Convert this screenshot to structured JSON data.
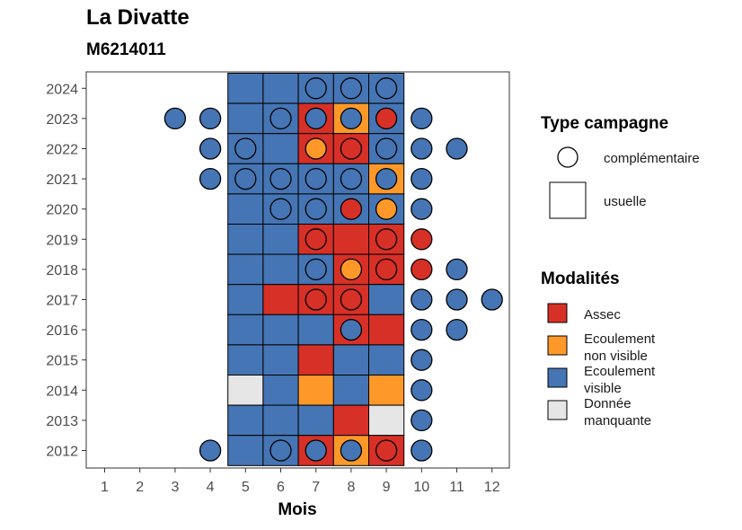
{
  "header": {
    "title": "La Divatte",
    "subtitle": "M6214011"
  },
  "colors": {
    "Assec": "#d73027",
    "Ecoulement non visible": "#fe9929",
    "Ecoulement visible": "#4575b4",
    "Donnée manquante": "#e6e6e6"
  },
  "legend": {
    "type_title": "Type campagne",
    "type_items": [
      "complémentaire",
      "usuelle"
    ],
    "mod_title": "Modalités",
    "mod_items": [
      {
        "key": "Assec",
        "lines": [
          "Assec"
        ]
      },
      {
        "key": "Ecoulement non visible",
        "lines": [
          "Ecoulement",
          "non visible"
        ]
      },
      {
        "key": "Ecoulement visible",
        "lines": [
          "Ecoulement",
          "visible"
        ]
      },
      {
        "key": "Donnée manquante",
        "lines": [
          "Donnée",
          "manquante"
        ]
      }
    ]
  },
  "chart_data": {
    "type": "heatmap",
    "xlabel": "Mois",
    "ylabel": "",
    "x_ticks": [
      1,
      2,
      3,
      4,
      5,
      6,
      7,
      8,
      9,
      10,
      11,
      12
    ],
    "y_ticks": [
      2012,
      2013,
      2014,
      2015,
      2016,
      2017,
      2018,
      2019,
      2020,
      2021,
      2022,
      2023,
      2024
    ],
    "usuelle": [
      {
        "year": 2024,
        "values": {
          "5": "Ecoulement visible",
          "6": "Ecoulement visible",
          "7": "Ecoulement visible",
          "8": "Ecoulement visible",
          "9": "Ecoulement visible"
        }
      },
      {
        "year": 2023,
        "values": {
          "5": "Ecoulement visible",
          "6": "Ecoulement visible",
          "7": "Assec",
          "8": "Ecoulement non visible",
          "9": "Ecoulement visible"
        }
      },
      {
        "year": 2022,
        "values": {
          "5": "Ecoulement visible",
          "6": "Ecoulement visible",
          "7": "Assec",
          "8": "Assec",
          "9": "Ecoulement visible"
        }
      },
      {
        "year": 2021,
        "values": {
          "5": "Ecoulement visible",
          "6": "Ecoulement visible",
          "7": "Ecoulement visible",
          "8": "Ecoulement visible",
          "9": "Ecoulement non visible"
        }
      },
      {
        "year": 2020,
        "values": {
          "5": "Ecoulement visible",
          "6": "Ecoulement visible",
          "7": "Ecoulement visible",
          "8": "Ecoulement visible",
          "9": "Ecoulement visible"
        }
      },
      {
        "year": 2019,
        "values": {
          "5": "Ecoulement visible",
          "6": "Ecoulement visible",
          "7": "Assec",
          "8": "Assec",
          "9": "Assec"
        }
      },
      {
        "year": 2018,
        "values": {
          "5": "Ecoulement visible",
          "6": "Ecoulement visible",
          "7": "Ecoulement visible",
          "8": "Assec",
          "9": "Assec"
        }
      },
      {
        "year": 2017,
        "values": {
          "5": "Ecoulement visible",
          "6": "Assec",
          "7": "Assec",
          "8": "Assec",
          "9": "Ecoulement visible"
        }
      },
      {
        "year": 2016,
        "values": {
          "5": "Ecoulement visible",
          "6": "Ecoulement visible",
          "7": "Ecoulement visible",
          "8": "Assec",
          "9": "Assec"
        }
      },
      {
        "year": 2015,
        "values": {
          "5": "Ecoulement visible",
          "6": "Ecoulement visible",
          "7": "Assec",
          "8": "Ecoulement visible",
          "9": "Ecoulement visible"
        }
      },
      {
        "year": 2014,
        "values": {
          "5": "Donnée manquante",
          "6": "Ecoulement visible",
          "7": "Ecoulement non visible",
          "8": "Ecoulement visible",
          "9": "Ecoulement non visible"
        }
      },
      {
        "year": 2013,
        "values": {
          "5": "Ecoulement visible",
          "6": "Ecoulement visible",
          "7": "Ecoulement visible",
          "8": "Assec",
          "9": "Donnée manquante"
        }
      },
      {
        "year": 2012,
        "values": {
          "5": "Ecoulement visible",
          "6": "Ecoulement visible",
          "7": "Assec",
          "8": "Ecoulement non visible",
          "9": "Assec"
        }
      }
    ],
    "complementaire": [
      {
        "year": 2024,
        "values": {
          "7": "Ecoulement visible",
          "8": "Ecoulement visible",
          "9": "Ecoulement visible"
        }
      },
      {
        "year": 2023,
        "values": {
          "3": "Ecoulement visible",
          "4": "Ecoulement visible",
          "6": "Ecoulement visible",
          "7": "Ecoulement visible",
          "8": "Ecoulement visible",
          "9": "Assec",
          "10": "Ecoulement visible"
        }
      },
      {
        "year": 2022,
        "values": {
          "4": "Ecoulement visible",
          "5": "Ecoulement visible",
          "7": "Ecoulement non visible",
          "8": "Assec",
          "9": "Ecoulement visible",
          "10": "Ecoulement visible",
          "11": "Ecoulement visible"
        }
      },
      {
        "year": 2021,
        "values": {
          "4": "Ecoulement visible",
          "5": "Ecoulement visible",
          "6": "Ecoulement visible",
          "7": "Ecoulement visible",
          "8": "Ecoulement visible",
          "9": "Ecoulement visible",
          "10": "Ecoulement visible"
        }
      },
      {
        "year": 2020,
        "values": {
          "6": "Ecoulement visible",
          "7": "Ecoulement visible",
          "8": "Assec",
          "9": "Ecoulement non visible",
          "10": "Ecoulement visible"
        }
      },
      {
        "year": 2019,
        "values": {
          "7": "Assec",
          "9": "Assec",
          "10": "Assec"
        }
      },
      {
        "year": 2018,
        "values": {
          "7": "Ecoulement visible",
          "8": "Ecoulement non visible",
          "9": "Assec",
          "10": "Assec",
          "11": "Ecoulement visible"
        }
      },
      {
        "year": 2017,
        "values": {
          "7": "Assec",
          "8": "Assec",
          "10": "Ecoulement visible",
          "11": "Ecoulement visible",
          "12": "Ecoulement visible"
        }
      },
      {
        "year": 2016,
        "values": {
          "8": "Ecoulement visible",
          "10": "Ecoulement visible",
          "11": "Ecoulement visible"
        }
      },
      {
        "year": 2015,
        "values": {
          "10": "Ecoulement visible"
        }
      },
      {
        "year": 2014,
        "values": {
          "10": "Ecoulement visible"
        }
      },
      {
        "year": 2013,
        "values": {
          "10": "Ecoulement visible"
        }
      },
      {
        "year": 2012,
        "values": {
          "4": "Ecoulement visible",
          "6": "Ecoulement visible",
          "7": "Ecoulement visible",
          "8": "Ecoulement visible",
          "9": "Assec",
          "10": "Ecoulement visible"
        }
      }
    ]
  }
}
